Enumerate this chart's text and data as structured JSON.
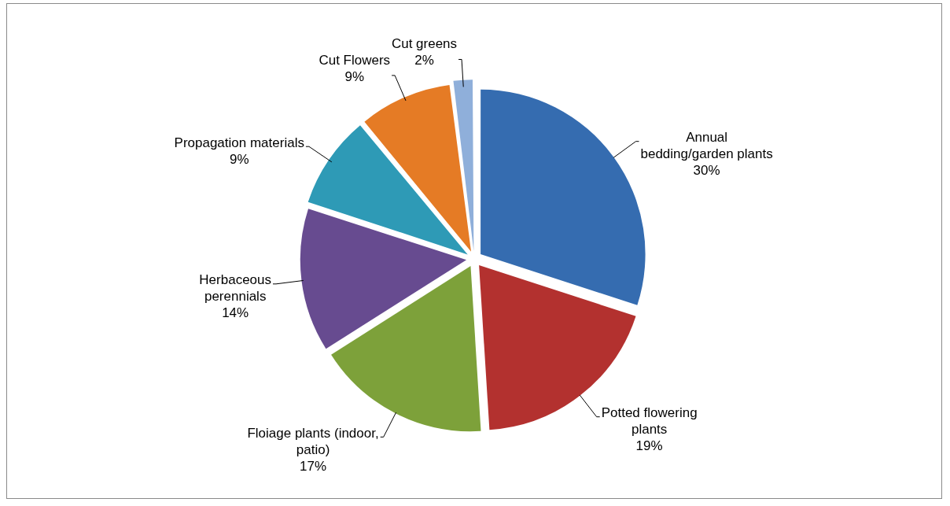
{
  "chart_data": {
    "type": "pie",
    "categories": [
      "Annual bedding/garden plants",
      "Potted flowering plants",
      "Floiage plants (indoor, patio)",
      "Herbaceous perennials",
      "Propagation materials",
      "Cut Flowers",
      "Cut greens"
    ],
    "values": [
      30,
      19,
      17,
      14,
      9,
      9,
      2
    ],
    "colors": [
      "#356cb0",
      "#b3312f",
      "#7da13a",
      "#674b90",
      "#2e9ab6",
      "#e57b25",
      "#8fafda"
    ],
    "value_labels": [
      "30%",
      "19%",
      "17%",
      "14%",
      "9%",
      "9%",
      "2%"
    ],
    "legend": false
  }
}
